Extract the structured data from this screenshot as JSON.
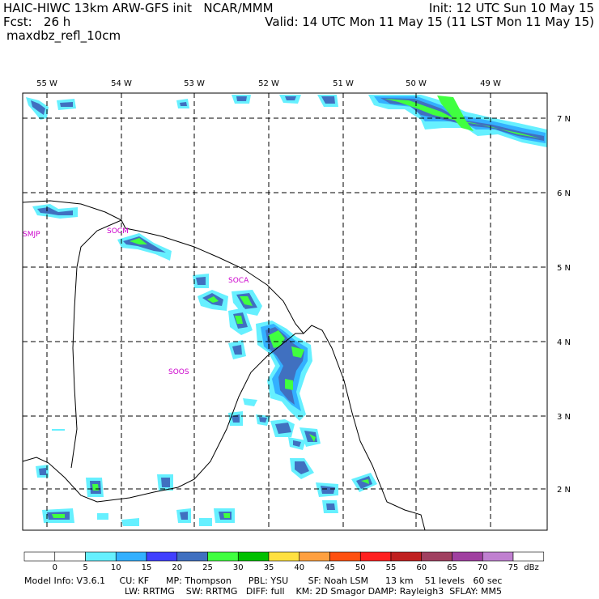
{
  "header": {
    "title": "HAIC-HIWC 13km ARW-GFS init   NCAR/MMM",
    "forecast": "Fcst:   26 h",
    "field": "maxdbz_refl_10cm",
    "init": "Init: 12 UTC Sun 10 May 15",
    "valid": "Valid: 14 UTC Mon 11 May 15 (11 LST Mon 11 May 15)"
  },
  "map": {
    "lon_labels": [
      "55 W",
      "54 W",
      "53 W",
      "52 W",
      "51 W",
      "50 W",
      "49 W"
    ],
    "lat_labels": [
      "7 N",
      "6 N",
      "5 N",
      "4 N",
      "3 N",
      "2 N"
    ],
    "stations": [
      "SMJP",
      "SOCM",
      "SOCA",
      "SOOS"
    ],
    "colors": {
      "grid": "#000000",
      "coast": "#000000",
      "station": "#cc00cc"
    }
  },
  "colorbar": {
    "ticks": [
      "0",
      "5",
      "10",
      "15",
      "20",
      "25",
      "30",
      "35",
      "40",
      "45",
      "50",
      "55",
      "60",
      "65",
      "70",
      "75"
    ],
    "unit": "dBz",
    "colors": [
      "#ffffff",
      "#ffffff",
      "#66f0ff",
      "#33b0ff",
      "#4040ff",
      "#4070c0",
      "#40ff40",
      "#00c000",
      "#ffe040",
      "#ffa040",
      "#ff5010",
      "#ff2020",
      "#c02020",
      "#a04060",
      "#a040a0",
      "#c080d0",
      "#ffffff"
    ]
  },
  "footer": {
    "line1": "Model Info: V3.6.1     CU: KF      MP: Thompson      PBL: YSU       SF: Noah LSM      13 km    51 levels   60 sec",
    "line2": "LW: RRTMG    SW: RRTMG   DIFF: full    KM: 2D Smagor DAMP: Rayleigh3  SFLAY: MM5"
  }
}
